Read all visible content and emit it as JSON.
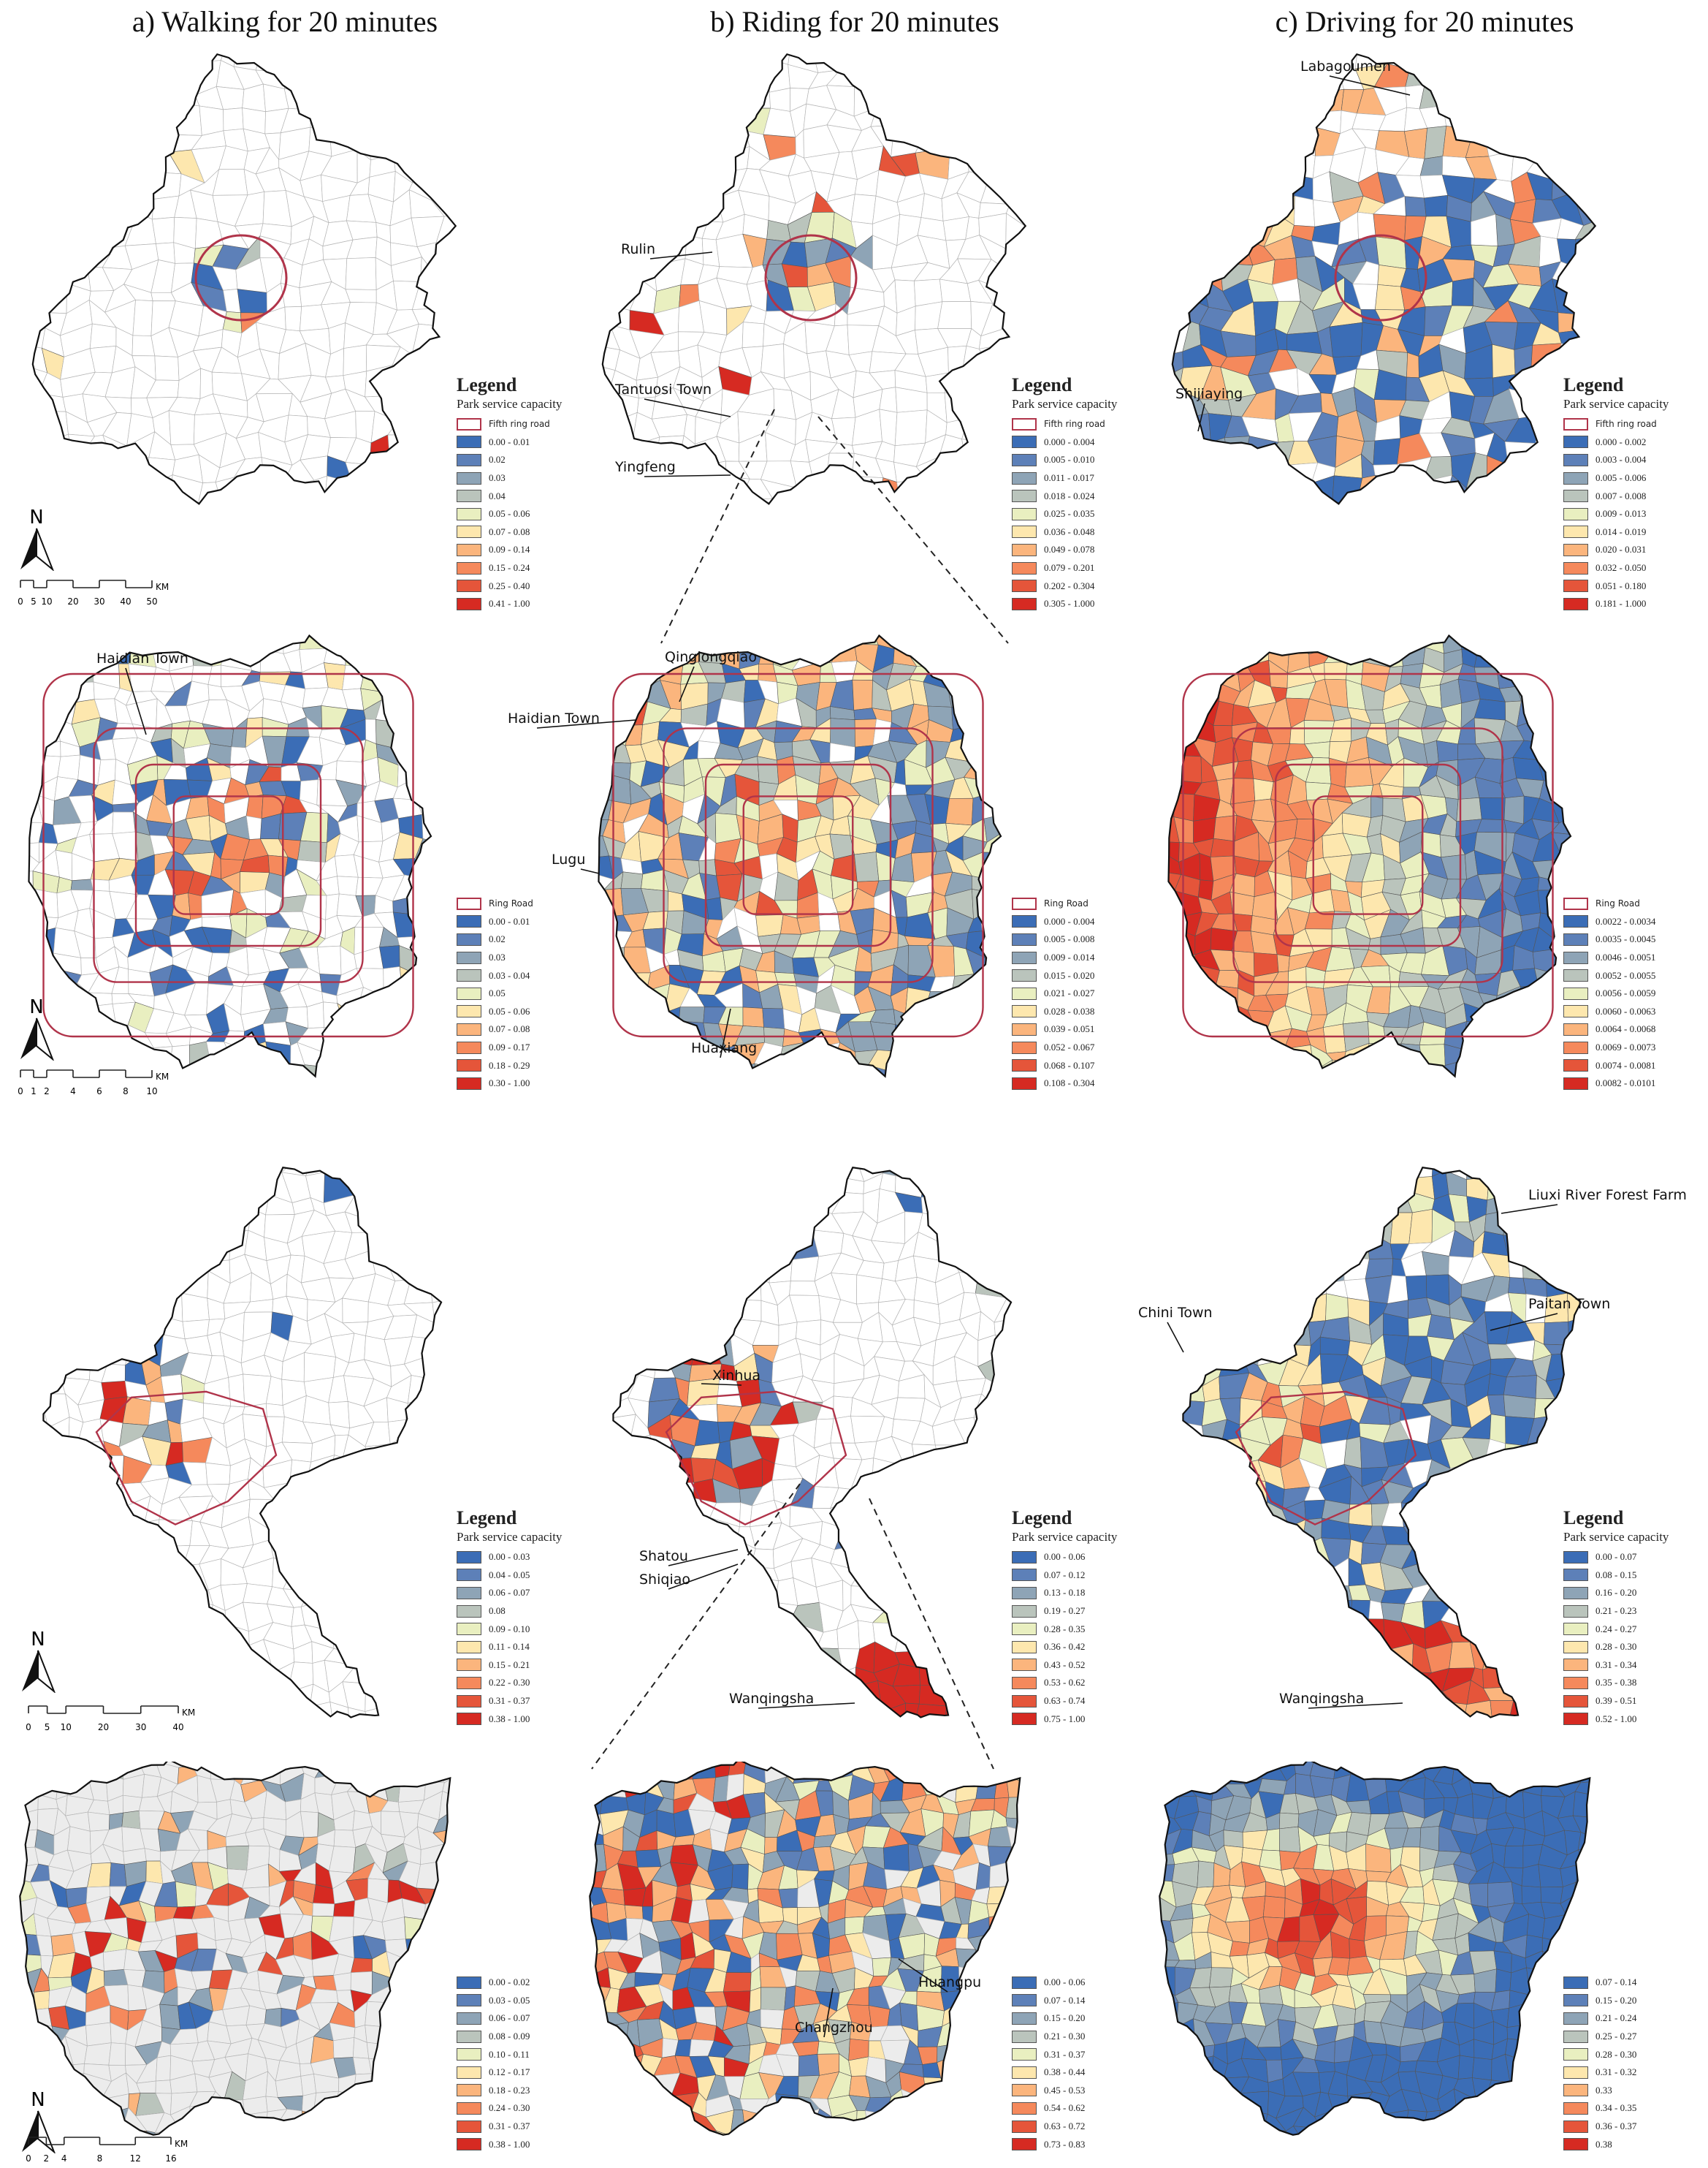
{
  "titles": [
    "a) Walking for 20 minutes",
    "b) Riding for 20 minutes",
    "c) Driving for 20 minutes"
  ],
  "palette": [
    "#3b6db6",
    "#5d80b8",
    "#8ea4b6",
    "#bac4bc",
    "#e9efc0",
    "#fde7ae",
    "#fbb57d",
    "#f5895c",
    "#e5553a",
    "#d62a22"
  ],
  "ring_color": "#b0344a",
  "north_label": "N",
  "scale_unit": "KM",
  "scale_bars": {
    "beijing_overview": [
      "0",
      "5",
      "10",
      "20",
      "30",
      "40",
      "50"
    ],
    "beijing_inset": [
      "0",
      "1",
      "2",
      "4",
      "6",
      "8",
      "10"
    ],
    "guangzhou_overview": [
      "0",
      "5",
      "10",
      "20",
      "30",
      "40"
    ],
    "guangzhou_inset": [
      "0",
      "2",
      "4",
      "8",
      "12",
      "16"
    ]
  },
  "legends": {
    "beijing_overview": [
      {
        "title": "Legend",
        "subtitle": "Park service capacity",
        "ring_label": "Fifth ring road",
        "items": [
          "0.00 - 0.01",
          "0.02",
          "0.03",
          "0.04",
          "0.05 - 0.06",
          "0.07 - 0.08",
          "0.09 - 0.14",
          "0.15 - 0.24",
          "0.25 - 0.40",
          "0.41 - 1.00"
        ]
      },
      {
        "title": "Legend",
        "subtitle": "Park service capacity",
        "ring_label": "Fifth ring road",
        "items": [
          "0.000 - 0.004",
          "0.005 - 0.010",
          "0.011 - 0.017",
          "0.018 - 0.024",
          "0.025 - 0.035",
          "0.036 - 0.048",
          "0.049 - 0.078",
          "0.079 - 0.201",
          "0.202 - 0.304",
          "0.305 - 1.000"
        ]
      },
      {
        "title": "Legend",
        "subtitle": "Park service capacity",
        "ring_label": "Fifth ring road",
        "items": [
          "0.000 - 0.002",
          "0.003 - 0.004",
          "0.005 - 0.006",
          "0.007 - 0.008",
          "0.009 - 0.013",
          "0.014 - 0.019",
          "0.020 - 0.031",
          "0.032 - 0.050",
          "0.051 - 0.180",
          "0.181 - 1.000"
        ]
      }
    ],
    "beijing_inset": [
      {
        "ring_label": "Ring Road",
        "items": [
          "0.00 - 0.01",
          "0.02",
          "0.03",
          "0.03 - 0.04",
          "0.05",
          "0.05 - 0.06",
          "0.07 - 0.08",
          "0.09 - 0.17",
          "0.18 - 0.29",
          "0.30 - 1.00"
        ]
      },
      {
        "ring_label": "Ring Road",
        "items": [
          "0.000 - 0.004",
          "0.005 - 0.008",
          "0.009 - 0.014",
          "0.015 - 0.020",
          "0.021 - 0.027",
          "0.028 - 0.038",
          "0.039 - 0.051",
          "0.052 - 0.067",
          "0.068 - 0.107",
          "0.108 - 0.304"
        ]
      },
      {
        "ring_label": "Ring Road",
        "items": [
          "0.0022 - 0.0034",
          "0.0035 - 0.0045",
          "0.0046 - 0.0051",
          "0.0052 - 0.0055",
          "0.0056 - 0.0059",
          "0.0060 - 0.0063",
          "0.0064 - 0.0068",
          "0.0069 - 0.0073",
          "0.0074 - 0.0081",
          "0.0082 - 0.0101"
        ]
      }
    ],
    "guangzhou_overview": [
      {
        "title": "Legend",
        "subtitle": "Park service capacity",
        "items": [
          "0.00 - 0.03",
          "0.04 - 0.05",
          "0.06 - 0.07",
          "0.08",
          "0.09 - 0.10",
          "0.11 - 0.14",
          "0.15 - 0.21",
          "0.22 - 0.30",
          "0.31 - 0.37",
          "0.38 - 1.00"
        ]
      },
      {
        "title": "Legend",
        "subtitle": "Park service capacity",
        "items": [
          "0.00 - 0.06",
          "0.07 - 0.12",
          "0.13 - 0.18",
          "0.19 - 0.27",
          "0.28 - 0.35",
          "0.36 - 0.42",
          "0.43 - 0.52",
          "0.53 - 0.62",
          "0.63 - 0.74",
          "0.75 - 1.00"
        ]
      },
      {
        "title": "Legend",
        "subtitle": "Park service capacity",
        "items": [
          "0.00 - 0.07",
          "0.08 - 0.15",
          "0.16 - 0.20",
          "0.21 - 0.23",
          "0.24 - 0.27",
          "0.28 - 0.30",
          "0.31 - 0.34",
          "0.35 - 0.38",
          "0.39 - 0.51",
          "0.52 - 1.00"
        ]
      }
    ],
    "guangzhou_inset": [
      {
        "items": [
          "0.00 - 0.02",
          "0.03 - 0.05",
          "0.06 - 0.07",
          "0.08 - 0.09",
          "0.10 - 0.11",
          "0.12 - 0.17",
          "0.18 - 0.23",
          "0.24 - 0.30",
          "0.31 - 0.37",
          "0.38 - 1.00"
        ]
      },
      {
        "items": [
          "0.00 - 0.06",
          "0.07 - 0.14",
          "0.15 - 0.20",
          "0.21 - 0.30",
          "0.31 - 0.37",
          "0.38 - 0.44",
          "0.45 - 0.53",
          "0.54 - 0.62",
          "0.63 - 0.72",
          "0.73 - 0.83"
        ]
      },
      {
        "items": [
          "0.07 - 0.14",
          "0.15 - 0.20",
          "0.21 - 0.24",
          "0.25 - 0.27",
          "0.28 - 0.30",
          "0.31 - 0.32",
          "0.33",
          "0.34 - 0.35",
          "0.36 - 0.37",
          "0.38"
        ]
      }
    ]
  },
  "annotations": {
    "walking": [
      "Haidian Town"
    ],
    "riding": [
      "Rulin",
      "Tantuosi Town",
      "Yingfeng",
      "Qinglongqiao",
      "Haidian Town",
      "Lugu",
      "Huaxiang",
      "Xinhua",
      "Shatou",
      "Shiqiao",
      "Wanqingsha",
      "Huangpu",
      "Changzhou"
    ],
    "driving": [
      "Labagoumen",
      "Shijiaying",
      "Liuxi River Forest Farm",
      "Chini Town",
      "Paitan Town",
      "Wanqingsha"
    ]
  }
}
